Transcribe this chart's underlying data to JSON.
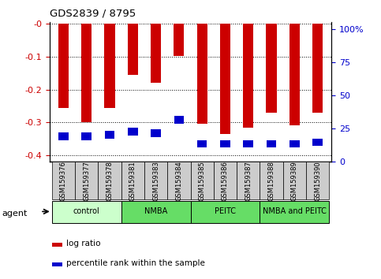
{
  "title": "GDS2839 / 8795",
  "categories": [
    "GSM159376",
    "GSM159377",
    "GSM159378",
    "GSM159381",
    "GSM159383",
    "GSM159384",
    "GSM159385",
    "GSM159386",
    "GSM159387",
    "GSM159388",
    "GSM159389",
    "GSM159390"
  ],
  "log_ratio": [
    -0.255,
    -0.3,
    -0.255,
    -0.155,
    -0.178,
    -0.098,
    -0.305,
    -0.335,
    -0.315,
    -0.27,
    -0.308,
    -0.27
  ],
  "blue_top": [
    -0.33,
    -0.33,
    -0.325,
    -0.315,
    -0.32,
    -0.28,
    -0.355,
    -0.355,
    -0.355,
    -0.355,
    -0.355,
    -0.35
  ],
  "blue_bottom": [
    -0.355,
    -0.355,
    -0.35,
    -0.34,
    -0.345,
    -0.305,
    -0.375,
    -0.375,
    -0.375,
    -0.375,
    -0.375,
    -0.372
  ],
  "bar_color_red": "#cc0000",
  "bar_color_blue": "#0000cc",
  "ylim_left": [
    -0.42,
    0.005
  ],
  "ylim_right": [
    0,
    105
  ],
  "yticks_left": [
    0.0,
    -0.1,
    -0.2,
    -0.3,
    -0.4
  ],
  "yticks_right": [
    0,
    25,
    50,
    75,
    100
  ],
  "ytick_labels_left": [
    "-0",
    "-0.1",
    "-0.2",
    "-0.3",
    "-0.4"
  ],
  "ytick_labels_right": [
    "0",
    "25",
    "50",
    "75",
    "100%"
  ],
  "agent_groups": [
    {
      "label": "control",
      "span": [
        0,
        3
      ],
      "color": "#ccffcc"
    },
    {
      "label": "NMBA",
      "span": [
        3,
        6
      ],
      "color": "#66dd66"
    },
    {
      "label": "PEITC",
      "span": [
        6,
        9
      ],
      "color": "#66dd66"
    },
    {
      "label": "NMBA and PEITC",
      "span": [
        9,
        12
      ],
      "color": "#66dd66"
    }
  ],
  "bar_width": 0.45,
  "grid_color": "#000000",
  "bg_color": "#ffffff",
  "tick_label_color_left": "#cc0000",
  "tick_label_color_right": "#0000cc",
  "legend_items": [
    {
      "label": "log ratio",
      "color": "#cc0000"
    },
    {
      "label": "percentile rank within the sample",
      "color": "#0000cc"
    }
  ]
}
